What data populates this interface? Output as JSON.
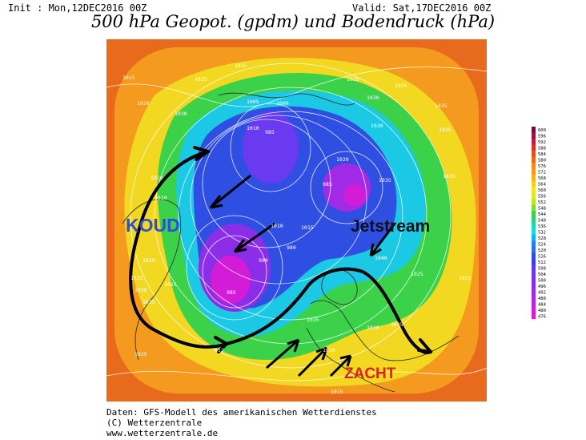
{
  "header": {
    "init": "Init : Mon,12DEC2016 00Z",
    "valid": "Valid: Sat,17DEC2016 00Z",
    "title": "500 hPa Geopot. (gpdm) und Bodendruck (hPa)"
  },
  "labels": {
    "cold": "KOUD",
    "jetstream": "Jetstream",
    "mild": "ZACHT"
  },
  "colorbar": {
    "ticks": [
      "600",
      "596",
      "592",
      "588",
      "584",
      "580",
      "576",
      "572",
      "568",
      "564",
      "560",
      "556",
      "552",
      "548",
      "544",
      "540",
      "536",
      "532",
      "528",
      "524",
      "520",
      "516",
      "512",
      "508",
      "504",
      "500",
      "496",
      "492",
      "488",
      "484",
      "480",
      "476"
    ]
  },
  "pressure_labels": [
    {
      "t": "1015"
    },
    {
      "t": "1020"
    },
    {
      "t": "1025"
    },
    {
      "t": "1030"
    },
    {
      "t": "1025"
    },
    {
      "t": "1005"
    },
    {
      "t": "1000"
    },
    {
      "t": "1010"
    },
    {
      "t": "1020"
    },
    {
      "t": "1025"
    },
    {
      "t": "1030"
    },
    {
      "t": "1025"
    },
    {
      "t": "1025"
    },
    {
      "t": "1025"
    },
    {
      "t": "1030"
    },
    {
      "t": "1035"
    },
    {
      "t": "1010"
    },
    {
      "t": "1020"
    },
    {
      "t": "1010"
    },
    {
      "t": "1025"
    },
    {
      "t": "1030"
    },
    {
      "t": "1035"
    },
    {
      "t": "1015"
    },
    {
      "t": "1040"
    },
    {
      "t": "1025"
    },
    {
      "t": "1025"
    },
    {
      "t": "1035"
    },
    {
      "t": "1030"
    },
    {
      "t": "1035"
    },
    {
      "t": "1030"
    },
    {
      "t": "1025"
    },
    {
      "t": "1015"
    },
    {
      "t": "985"
    },
    {
      "t": "985"
    },
    {
      "t": "985"
    },
    {
      "t": "990"
    },
    {
      "t": "980"
    },
    {
      "t": "1010"
    },
    {
      "t": "1015"
    },
    {
      "t": "1020"
    }
  ],
  "contour_label": "552",
  "footer": {
    "line1": "Daten: GFS-Modell des amerikanischen Wetterdienstes",
    "line2": "(C) Wetterzentrale",
    "line3": "www.wetterzentrale.de"
  },
  "colors": {
    "warm": "#e0521a",
    "orange": "#f6a31c",
    "yellow": "#f2e421",
    "green": "#3bd24a",
    "cyan": "#1bd9e0",
    "blue": "#2f4fe3",
    "purple": "#8c2de8",
    "magenta": "#d31cd8"
  }
}
